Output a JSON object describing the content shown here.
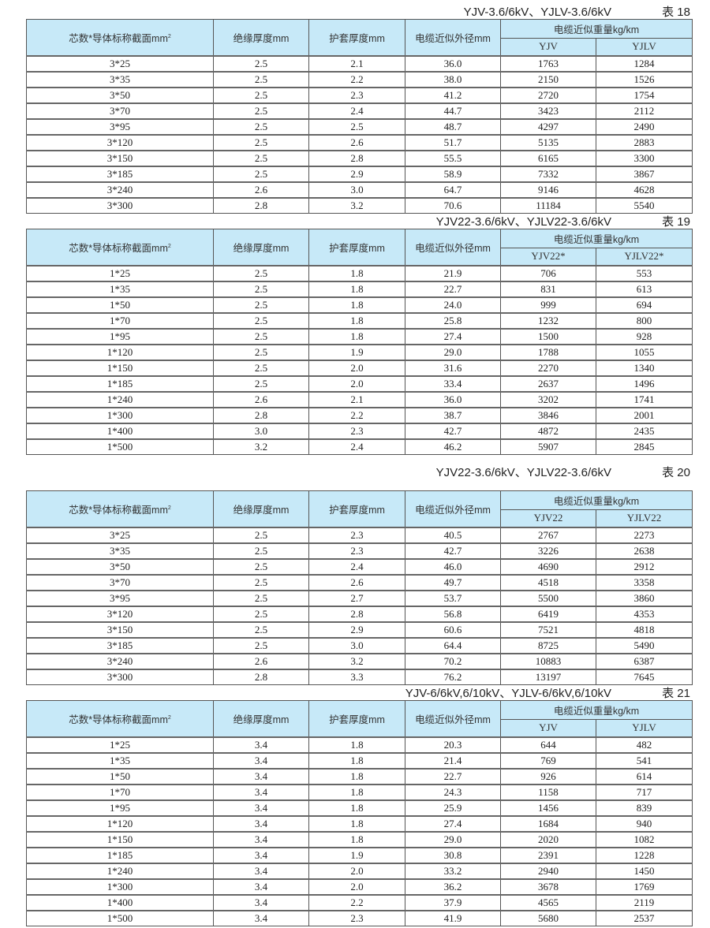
{
  "headers": {
    "col1": "芯数*导体标称截面mm",
    "col1_sup": "2",
    "col2": "绝缘厚度mm",
    "col3": "护套厚度mm",
    "col4": "电缆近似外径mm",
    "weight": "电缆近似重量kg/km"
  },
  "colors": {
    "header_bg": "#c7e9f8"
  },
  "tables": [
    {
      "title": "YJV-3.6/6kV、YJLV-3.6/6kV",
      "number": "表 18",
      "sub": [
        "YJV",
        "YJLV"
      ],
      "rows": [
        [
          "3*25",
          "2.5",
          "2.1",
          "36.0",
          "1763",
          "1284"
        ],
        [
          "3*35",
          "2.5",
          "2.2",
          "38.0",
          "2150",
          "1526"
        ],
        [
          "3*50",
          "2.5",
          "2.3",
          "41.2",
          "2720",
          "1754"
        ],
        [
          "3*70",
          "2.5",
          "2.4",
          "44.7",
          "3423",
          "2112"
        ],
        [
          "3*95",
          "2.5",
          "2.5",
          "48.7",
          "4297",
          "2490"
        ],
        [
          "3*120",
          "2.5",
          "2.6",
          "51.7",
          "5135",
          "2883"
        ],
        [
          "3*150",
          "2.5",
          "2.8",
          "55.5",
          "6165",
          "3300"
        ],
        [
          "3*185",
          "2.5",
          "2.9",
          "58.9",
          "7332",
          "3867"
        ],
        [
          "3*240",
          "2.6",
          "3.0",
          "64.7",
          "9146",
          "4628"
        ],
        [
          "3*300",
          "2.8",
          "3.2",
          "70.6",
          "11184",
          "5540"
        ]
      ]
    },
    {
      "title": "YJV22-3.6/6kV、YJLV22-3.6/6kV",
      "number": "表 19",
      "sub": [
        "YJV22*",
        "YJLV22*"
      ],
      "rows": [
        [
          "1*25",
          "2.5",
          "1.8",
          "21.9",
          "706",
          "553"
        ],
        [
          "1*35",
          "2.5",
          "1.8",
          "22.7",
          "831",
          "613"
        ],
        [
          "1*50",
          "2.5",
          "1.8",
          "24.0",
          "999",
          "694"
        ],
        [
          "1*70",
          "2.5",
          "1.8",
          "25.8",
          "1232",
          "800"
        ],
        [
          "1*95",
          "2.5",
          "1.8",
          "27.4",
          "1500",
          "928"
        ],
        [
          "1*120",
          "2.5",
          "1.9",
          "29.0",
          "1788",
          "1055"
        ],
        [
          "1*150",
          "2.5",
          "2.0",
          "31.6",
          "2270",
          "1340"
        ],
        [
          "1*185",
          "2.5",
          "2.0",
          "33.4",
          "2637",
          "1496"
        ],
        [
          "1*240",
          "2.6",
          "2.1",
          "36.0",
          "3202",
          "1741"
        ],
        [
          "1*300",
          "2.8",
          "2.2",
          "38.7",
          "3846",
          "2001"
        ],
        [
          "1*400",
          "3.0",
          "2.3",
          "42.7",
          "4872",
          "2435"
        ],
        [
          "1*500",
          "3.2",
          "2.4",
          "46.2",
          "5907",
          "2845"
        ]
      ]
    },
    {
      "title": "YJV22-3.6/6kV、YJLV22-3.6/6kV",
      "number": "表 20",
      "sub": [
        "YJV22",
        "YJLV22"
      ],
      "rows": [
        [
          "3*25",
          "2.5",
          "2.3",
          "40.5",
          "2767",
          "2273"
        ],
        [
          "3*35",
          "2.5",
          "2.3",
          "42.7",
          "3226",
          "2638"
        ],
        [
          "3*50",
          "2.5",
          "2.4",
          "46.0",
          "4690",
          "2912"
        ],
        [
          "3*70",
          "2.5",
          "2.6",
          "49.7",
          "4518",
          "3358"
        ],
        [
          "3*95",
          "2.5",
          "2.7",
          "53.7",
          "5500",
          "3860"
        ],
        [
          "3*120",
          "2.5",
          "2.8",
          "56.8",
          "6419",
          "4353"
        ],
        [
          "3*150",
          "2.5",
          "2.9",
          "60.6",
          "7521",
          "4818"
        ],
        [
          "3*185",
          "2.5",
          "3.0",
          "64.4",
          "8725",
          "5490"
        ],
        [
          "3*240",
          "2.6",
          "3.2",
          "70.2",
          "10883",
          "6387"
        ],
        [
          "3*300",
          "2.8",
          "3.3",
          "76.2",
          "13197",
          "7645"
        ]
      ]
    },
    {
      "title": "YJV-6/6kV,6/10kV、YJLV-6/6kV,6/10kV",
      "number": "表 21",
      "sub": [
        "YJV",
        "YJLV"
      ],
      "rows": [
        [
          "1*25",
          "3.4",
          "1.8",
          "20.3",
          "644",
          "482"
        ],
        [
          "1*35",
          "3.4",
          "1.8",
          "21.4",
          "769",
          "541"
        ],
        [
          "1*50",
          "3.4",
          "1.8",
          "22.7",
          "926",
          "614"
        ],
        [
          "1*70",
          "3.4",
          "1.8",
          "24.3",
          "1158",
          "717"
        ],
        [
          "1*95",
          "3.4",
          "1.8",
          "25.9",
          "1456",
          "839"
        ],
        [
          "1*120",
          "3.4",
          "1.8",
          "27.4",
          "1684",
          "940"
        ],
        [
          "1*150",
          "3.4",
          "1.8",
          "29.0",
          "2020",
          "1082"
        ],
        [
          "1*185",
          "3.4",
          "1.9",
          "30.8",
          "2391",
          "1228"
        ],
        [
          "1*240",
          "3.4",
          "2.0",
          "33.2",
          "2940",
          "1450"
        ],
        [
          "1*300",
          "3.4",
          "2.0",
          "36.2",
          "3678",
          "1769"
        ],
        [
          "1*400",
          "3.4",
          "2.2",
          "37.9",
          "4565",
          "2119"
        ],
        [
          "1*500",
          "3.4",
          "2.3",
          "41.9",
          "5680",
          "2537"
        ]
      ]
    }
  ]
}
